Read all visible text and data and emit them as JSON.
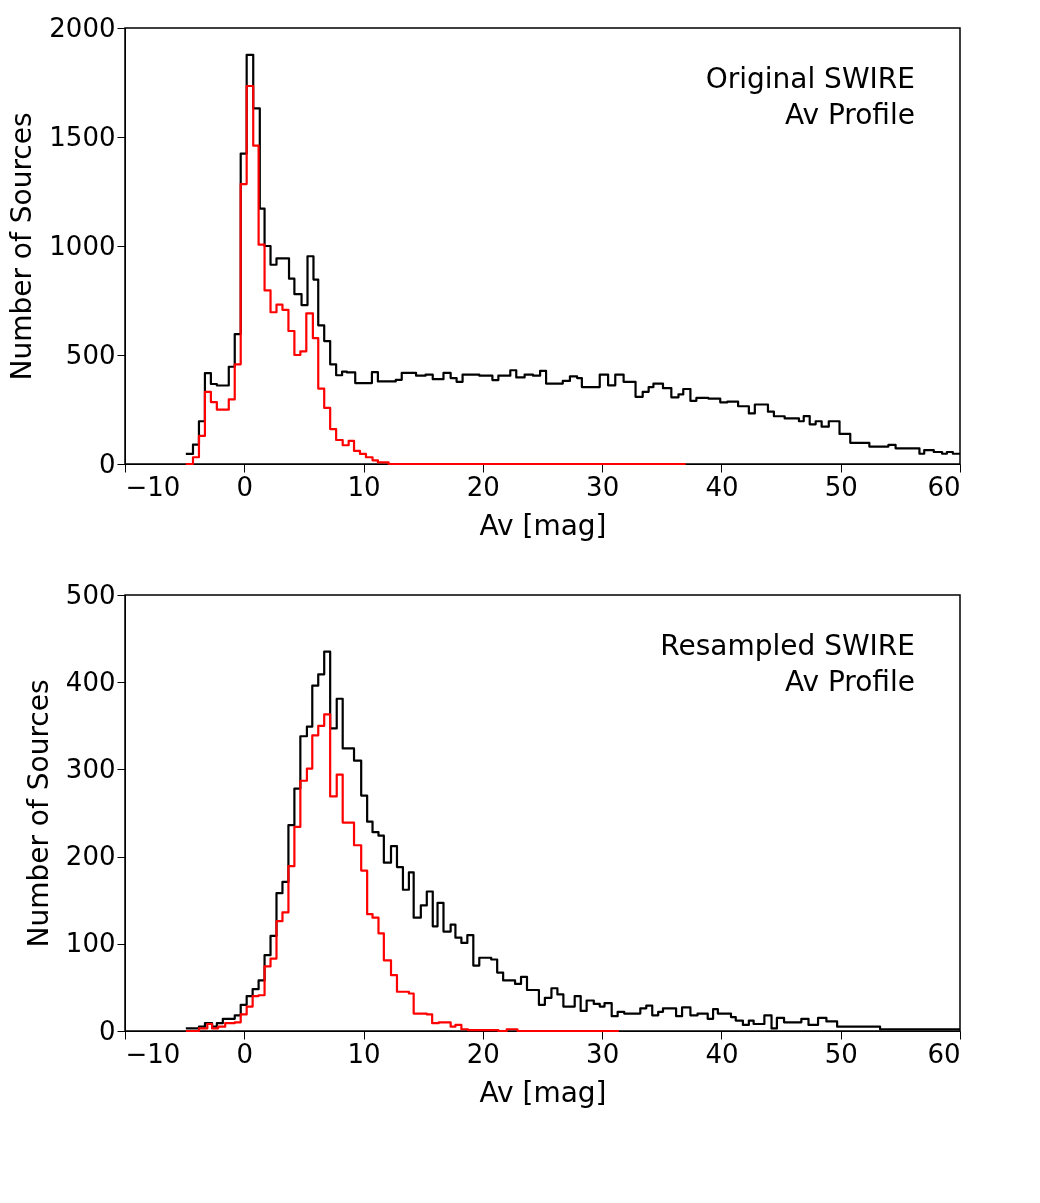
{
  "chart_data": [
    {
      "type": "step",
      "xlabel": "Av [mag]",
      "ylabel": "Number of Sources",
      "annotations": [
        "Original SWIRE",
        "Av Profile"
      ],
      "xlim": [
        -10,
        60
      ],
      "xticks": [
        -10,
        0,
        10,
        20,
        30,
        40,
        50,
        60
      ],
      "ylim": [
        0,
        2000
      ],
      "yticks": [
        0,
        500,
        1000,
        1500,
        2000
      ],
      "grid": false,
      "legend": false,
      "marker": "none",
      "series": [
        {
          "color": "#000000",
          "x": [
            -4.9,
            -4.3,
            -3.8,
            -3.3,
            -2.8,
            -2.3,
            -1.3,
            -0.8,
            -0.3,
            0.2,
            0.75,
            1.3,
            1.7,
            2.2,
            2.7,
            3.75,
            4.2,
            4.8,
            5.3,
            5.8,
            6.2,
            6.7,
            7.2,
            7.7,
            8.2,
            8.6,
            9.3,
            10.7,
            11.2,
            12.7,
            13.2,
            14.4,
            15.2,
            15.8,
            16.7,
            17.3,
            17.8,
            18.3,
            19.7,
            20.8,
            21.3,
            22.3,
            22.8,
            23.5,
            24.2,
            24.8,
            25.3,
            26.7,
            27.3,
            27.9,
            28.3,
            29.8,
            30.5,
            31.1,
            31.8,
            32.8,
            33.4,
            33.9,
            34.3,
            35.1,
            35.8,
            36.4,
            36.8,
            37.4,
            37.9,
            38.9,
            39.9,
            40.5,
            41.4,
            42.3,
            42.8,
            43.9,
            44.4,
            45.3,
            46.5,
            46.9,
            47.4,
            47.9,
            48.4,
            49.0,
            49.9,
            50.8,
            52.4,
            54.0,
            54.6,
            56.6,
            57.0,
            57.8,
            58.5,
            58.9,
            59.4,
            60.0
          ],
          "values": [
            46,
            89,
            196,
            417,
            367,
            360,
            446,
            596,
            1424,
            1877,
            1631,
            1171,
            1000,
            914,
            943,
            850,
            779,
            729,
            953,
            846,
            636,
            564,
            457,
            407,
            424,
            420,
            371,
            421,
            379,
            386,
            418,
            405,
            410,
            389,
            418,
            394,
            377,
            410,
            405,
            385,
            405,
            430,
            397,
            410,
            405,
            427,
            369,
            381,
            402,
            394,
            353,
            410,
            361,
            410,
            377,
            308,
            331,
            353,
            369,
            348,
            306,
            319,
            344,
            290,
            303,
            300,
            283,
            286,
            265,
            232,
            273,
            240,
            219,
            209,
            196,
            220,
            182,
            196,
            171,
            196,
            138,
            97,
            80,
            88,
            72,
            47,
            64,
            55,
            47,
            55,
            47,
            47
          ]
        },
        {
          "color": "#ff0000",
          "x": [
            -4.9,
            -4.3,
            -3.8,
            -3.3,
            -2.8,
            -2.3,
            -1.3,
            -0.8,
            -0.3,
            0.2,
            0.75,
            1.2,
            1.7,
            2.2,
            2.7,
            3.2,
            3.7,
            4.2,
            4.7,
            5.2,
            5.75,
            6.2,
            6.7,
            7.2,
            7.7,
            8.25,
            8.75,
            9.2,
            9.7,
            10.2,
            10.75,
            11.2,
            12.1,
            37.0
          ],
          "values": [
            0,
            31,
            129,
            331,
            284,
            249,
            296,
            457,
            1284,
            1734,
            1460,
            1006,
            796,
            696,
            731,
            707,
            610,
            500,
            517,
            691,
            577,
            346,
            257,
            160,
            110,
            86,
            106,
            60,
            46,
            31,
            17,
            7,
            0,
            0
          ]
        }
      ]
    },
    {
      "type": "step",
      "xlabel": "Av [mag]",
      "ylabel": "Number of Sources",
      "annotations": [
        "Resampled SWIRE",
        "Av Profile"
      ],
      "xlim": [
        -10,
        60
      ],
      "xticks": [
        -10,
        0,
        10,
        20,
        30,
        40,
        50,
        60
      ],
      "ylim": [
        0,
        500
      ],
      "yticks": [
        0,
        100,
        200,
        300,
        400,
        500
      ],
      "grid": false,
      "legend": false,
      "marker": "none",
      "series": [
        {
          "color": "#000000",
          "x": [
            -4.9,
            -3.8,
            -3.3,
            -2.7,
            -2.3,
            -1.8,
            -0.8,
            -0.3,
            0.2,
            0.7,
            1.2,
            1.7,
            2.2,
            2.7,
            3.2,
            3.7,
            4.2,
            4.7,
            5.25,
            5.7,
            6.2,
            6.7,
            7.2,
            7.75,
            8.25,
            9.2,
            9.8,
            10.3,
            10.75,
            11.25,
            11.7,
            12.3,
            12.8,
            13.3,
            13.8,
            14.2,
            14.8,
            15.3,
            15.8,
            16.2,
            16.7,
            17.3,
            17.7,
            18.2,
            18.7,
            19.2,
            19.7,
            20.7,
            21.2,
            21.7,
            22.7,
            23.2,
            23.7,
            24.7,
            25.2,
            25.75,
            26.25,
            26.75,
            27.7,
            28.2,
            28.7,
            29.3,
            29.8,
            30.2,
            30.8,
            31.3,
            31.85,
            33.2,
            33.7,
            34.2,
            34.7,
            35.1,
            36.2,
            36.7,
            37.4,
            38.0,
            38.85,
            39.3,
            39.7,
            40.8,
            41.2,
            41.8,
            42.3,
            42.7,
            43.6,
            44.2,
            44.65,
            45.25,
            46.7,
            47.3,
            48.1,
            48.8,
            49.7,
            53.3,
            60.0
          ],
          "values": [
            3,
            5,
            9,
            5,
            9,
            14,
            18,
            30,
            40,
            48,
            58,
            87,
            109,
            158,
            171,
            236,
            278,
            338,
            349,
            396,
            409,
            435,
            347,
            381,
            324,
            310,
            270,
            240,
            228,
            224,
            193,
            212,
            188,
            162,
            182,
            130,
            144,
            160,
            120,
            147,
            114,
            122,
            107,
            101,
            110,
            75,
            84,
            82,
            67,
            58,
            54,
            62,
            47,
            30,
            38,
            49,
            42,
            28,
            40,
            23,
            35,
            31,
            28,
            32,
            17,
            22,
            20,
            26,
            29,
            18,
            22,
            26,
            17,
            27,
            18,
            20,
            14,
            25,
            20,
            16,
            12,
            7,
            12,
            8,
            18,
            3,
            15,
            10,
            14,
            7,
            15,
            11,
            5,
            2,
            2
          ]
        },
        {
          "color": "#ff0000",
          "x": [
            -4.9,
            -3.8,
            -3.1,
            -2.7,
            -2.2,
            -1.6,
            -0.8,
            -0.3,
            0.2,
            0.7,
            1.2,
            1.7,
            2.2,
            2.7,
            3.2,
            3.7,
            4.2,
            4.7,
            5.25,
            5.7,
            6.2,
            6.7,
            7.2,
            7.75,
            8.25,
            9.2,
            9.8,
            10.3,
            10.75,
            11.25,
            11.7,
            12.3,
            12.8,
            13.8,
            14.2,
            15.3,
            15.75,
            16.3,
            16.7,
            17.3,
            17.7,
            18.2,
            18.75,
            21.3,
            22.0,
            22.9,
            31.4
          ],
          "values": [
            0,
            3,
            8,
            3,
            5,
            9,
            10,
            19,
            28,
            40,
            41,
            74,
            83,
            126,
            136,
            189,
            234,
            287,
            301,
            339,
            350,
            363,
            269,
            294,
            239,
            213,
            184,
            134,
            130,
            112,
            81,
            64,
            45,
            43,
            20,
            19,
            9,
            10,
            10,
            5,
            7,
            2,
            1,
            0,
            2,
            0,
            0
          ]
        }
      ]
    }
  ]
}
